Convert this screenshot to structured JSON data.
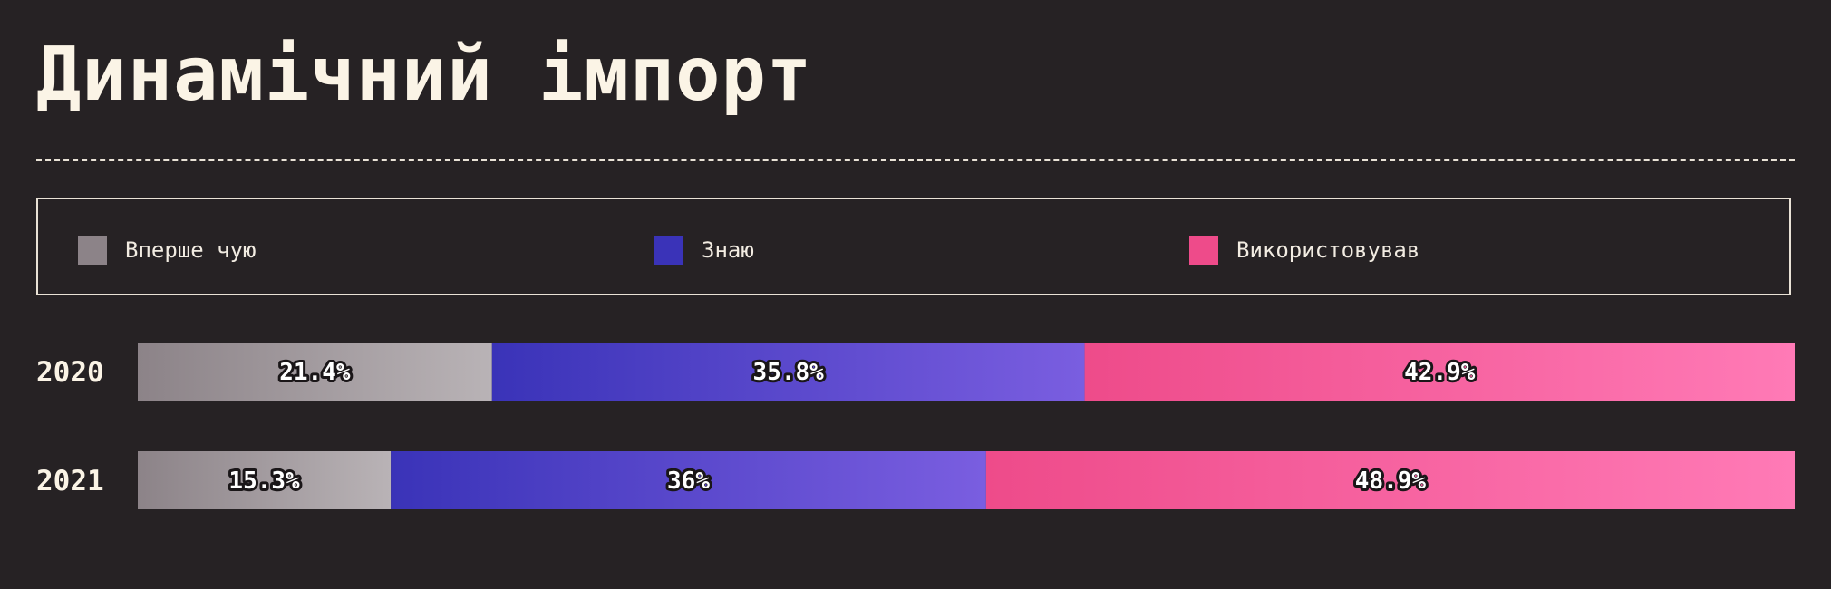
{
  "title": "Динамічний імпорт",
  "legend": {
    "items": [
      {
        "label": "Вперше чую",
        "color": "#8c8388"
      },
      {
        "label": "Знаю",
        "color": "#3a33b8"
      },
      {
        "label": "Використовував",
        "color": "#ee4b8a"
      }
    ]
  },
  "colors": {
    "background": "#262224",
    "text": "#fbf4e6",
    "gradients": [
      [
        "#8c8388",
        "#b9b3b6"
      ],
      [
        "#3a33b8",
        "#7a5ee0"
      ],
      [
        "#ee4b8a",
        "#ff7ab6"
      ]
    ]
  },
  "chart_data": {
    "type": "bar",
    "orientation": "horizontal",
    "stacked": true,
    "normalized": true,
    "categories": [
      "2020",
      "2021"
    ],
    "series": [
      {
        "name": "Вперше чую",
        "values": [
          21.4,
          15.3
        ],
        "labels": [
          "21.4%",
          "15.3%"
        ]
      },
      {
        "name": "Знаю",
        "values": [
          35.8,
          36
        ],
        "labels": [
          "35.8%",
          "36%"
        ]
      },
      {
        "name": "Використовував",
        "values": [
          42.9,
          48.9
        ],
        "labels": [
          "42.9%",
          "48.9%"
        ]
      }
    ],
    "title": "Динамічний імпорт",
    "xlabel": "",
    "ylabel": "",
    "grid": false,
    "legend_position": "top"
  }
}
